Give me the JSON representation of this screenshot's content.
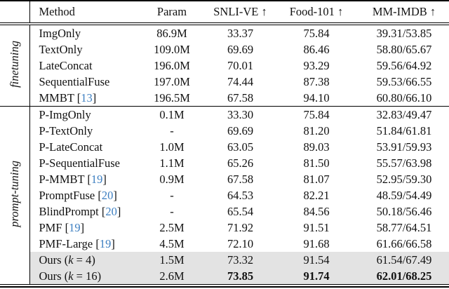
{
  "colors": {
    "citation_blue": "#3d7fc1",
    "highlight_gray": "#e3e3e3",
    "rule_black": "#000000"
  },
  "columns": [
    "Method",
    "Param",
    "SNLI-VE ↑",
    "Food-101 ↑",
    "MM-IMDB ↑"
  ],
  "sections": [
    {
      "label": "finetuning"
    },
    {
      "label": "prompt-tuning"
    }
  ],
  "rows": [
    {
      "method": [
        {
          "t": "ImgOnly"
        }
      ],
      "param": "86.9M",
      "snli": "33.37",
      "food": "75.84",
      "imdb": "39.31/53.85"
    },
    {
      "method": [
        {
          "t": "TextOnly"
        }
      ],
      "param": "109.0M",
      "snli": "69.69",
      "food": "86.46",
      "imdb": "58.80/65.67"
    },
    {
      "method": [
        {
          "t": "LateConcat"
        }
      ],
      "param": "196.0M",
      "snli": "70.01",
      "food": "93.29",
      "imdb": "59.56/64.92"
    },
    {
      "method": [
        {
          "t": "SequentialFuse"
        }
      ],
      "param": "197.0M",
      "snli": "74.44",
      "food": "87.38",
      "imdb": "59.53/66.55"
    },
    {
      "method": [
        {
          "t": "MMBT ["
        },
        {
          "t": "13",
          "c": "cite"
        },
        {
          "t": "]"
        }
      ],
      "param": "196.5M",
      "snli": "67.58",
      "food": "94.10",
      "imdb": "60.80/66.10"
    },
    {
      "method": [
        {
          "t": "P-ImgOnly"
        }
      ],
      "param": "0.1M",
      "snli": "33.30",
      "food": "75.84",
      "imdb": "32.83/49.47"
    },
    {
      "method": [
        {
          "t": "P-TextOnly"
        }
      ],
      "param": "-",
      "snli": "69.69",
      "food": "81.20",
      "imdb": "51.84/61.81"
    },
    {
      "method": [
        {
          "t": "P-LateConcat"
        }
      ],
      "param": "1.0M",
      "snli": "63.05",
      "food": "89.03",
      "imdb": "53.91/59.93"
    },
    {
      "method": [
        {
          "t": "P-SequentialFuse"
        }
      ],
      "param": "1.1M",
      "snli": "65.26",
      "food": "81.50",
      "imdb": "55.57/63.98"
    },
    {
      "method": [
        {
          "t": "P-MMBT ["
        },
        {
          "t": "19",
          "c": "cite"
        },
        {
          "t": "]"
        }
      ],
      "param": "0.9M",
      "snli": "67.58",
      "food": "81.07",
      "imdb": "52.95/59.30"
    },
    {
      "method": [
        {
          "t": "PromptFuse ["
        },
        {
          "t": "20",
          "c": "cite"
        },
        {
          "t": "]"
        }
      ],
      "param": "-",
      "snli": "64.53",
      "food": "82.21",
      "imdb": "48.59/54.49"
    },
    {
      "method": [
        {
          "t": "BlindPrompt ["
        },
        {
          "t": "20",
          "c": "cite"
        },
        {
          "t": "]"
        }
      ],
      "param": "-",
      "snli": "65.54",
      "food": "84.56",
      "imdb": "50.18/56.46"
    },
    {
      "method": [
        {
          "t": "PMF ["
        },
        {
          "t": "19",
          "c": "cite"
        },
        {
          "t": "]"
        }
      ],
      "param": "2.5M",
      "snli": "71.92",
      "food": "91.51",
      "imdb": "58.77/64.51"
    },
    {
      "method": [
        {
          "t": "PMF-Large ["
        },
        {
          "t": "19",
          "c": "cite"
        },
        {
          "t": "]"
        }
      ],
      "param": "4.5M",
      "snli": "72.10",
      "food": "91.68",
      "imdb": "61.66/66.58"
    },
    {
      "method": [
        {
          "t": "Ours ("
        },
        {
          "t": "k",
          "c": "it"
        },
        {
          "t": " = 4)"
        }
      ],
      "param": "1.5M",
      "snli": "73.32",
      "food": "91.54",
      "imdb": "61.54/67.49"
    },
    {
      "method": [
        {
          "t": "Ours ("
        },
        {
          "t": "k",
          "c": "it"
        },
        {
          "t": " = 16)"
        }
      ],
      "param": "2.6M",
      "snli": "73.85",
      "food": "91.74",
      "imdb": "62.01/68.25"
    }
  ]
}
